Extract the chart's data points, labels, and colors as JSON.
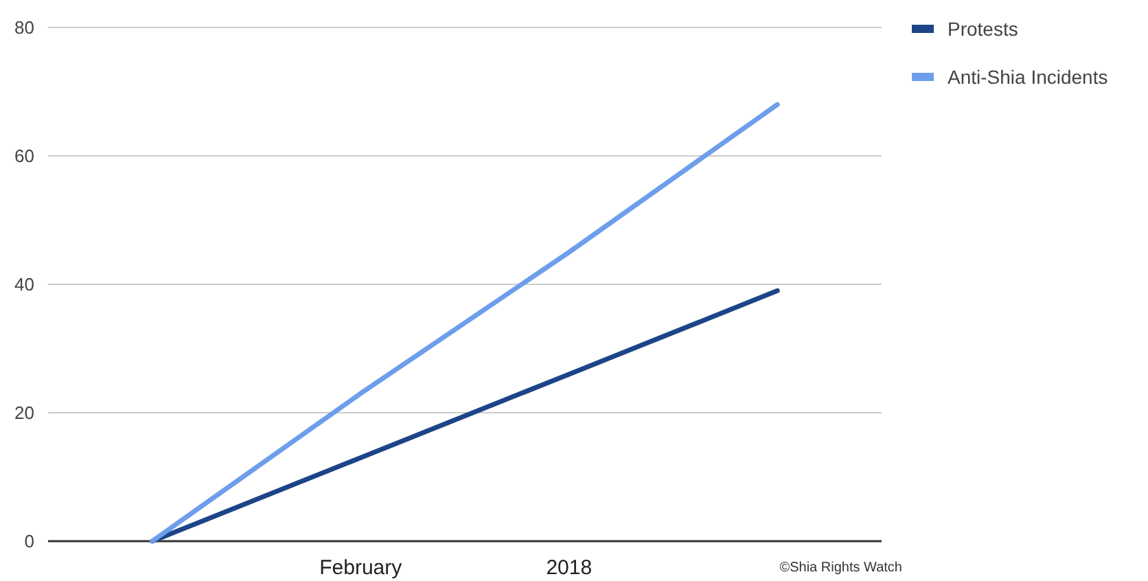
{
  "chart_data": {
    "type": "line",
    "categories": [
      null,
      "February",
      "2018",
      null
    ],
    "series": [
      {
        "name": "Protests",
        "color": "#1c4587",
        "values": [
          0,
          13,
          26,
          39
        ]
      },
      {
        "name": "Anti-Shia Incidents",
        "color": "#6d9eeb",
        "values": [
          0,
          23,
          45,
          68
        ]
      }
    ],
    "ylim": [
      0,
      80
    ],
    "yticks": [
      0,
      20,
      40,
      60,
      80
    ],
    "grid": "y",
    "legend": "top right",
    "marker": "none",
    "line_style": "solid",
    "annotations": [
      "©Shia Rights Watch"
    ]
  }
}
